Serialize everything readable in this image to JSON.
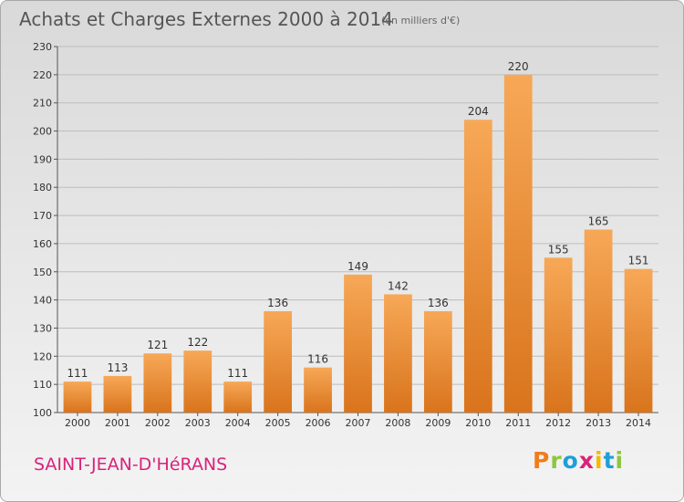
{
  "header": {
    "title": "Achats et Charges Externes 2000 à 2014",
    "subtitle": "(en milliers d'€)"
  },
  "footer": {
    "town": "SAINT-JEAN-D'HéRANS",
    "logo": "Proxiti",
    "logo_colors": [
      "#f07c1c",
      "#8dc63f",
      "#1e9fd8",
      "#d9237a",
      "#f5b800",
      "#1e9fd8",
      "#8dc63f"
    ]
  },
  "colors": {
    "bar_light": "#f7a857",
    "bar_dark": "#d9741c",
    "grid": "#bdbdbd",
    "axis": "#555555"
  },
  "chart_data": {
    "type": "bar",
    "title": "Achats et Charges Externes 2000 à 2014",
    "subtitle": "(en milliers d'€)",
    "categories": [
      "2000",
      "2001",
      "2002",
      "2003",
      "2004",
      "2005",
      "2006",
      "2007",
      "2008",
      "2009",
      "2010",
      "2011",
      "2012",
      "2013",
      "2014"
    ],
    "values": [
      111,
      113,
      121,
      122,
      111,
      136,
      116,
      149,
      142,
      136,
      204,
      220,
      155,
      165,
      151
    ],
    "ylim": [
      100,
      230
    ],
    "yticks": [
      100,
      110,
      120,
      130,
      140,
      150,
      160,
      170,
      180,
      190,
      200,
      210,
      220,
      230
    ],
    "grid": true
  }
}
